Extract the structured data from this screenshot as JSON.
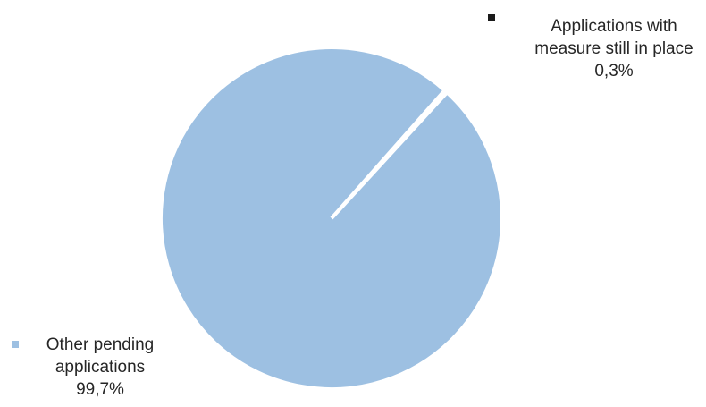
{
  "chart_data": {
    "type": "pie",
    "slices": [
      {
        "label_lines": [
          "Applications with",
          "measure still in place"
        ],
        "value_label": "0,3%",
        "value": 0.3,
        "color": "#1a1a1a"
      },
      {
        "label_lines": [
          "Other pending",
          "applications"
        ],
        "value_label": "99,7%",
        "value": 99.7,
        "color": "#9dc0e2"
      }
    ],
    "legend": "labels beside slices"
  }
}
